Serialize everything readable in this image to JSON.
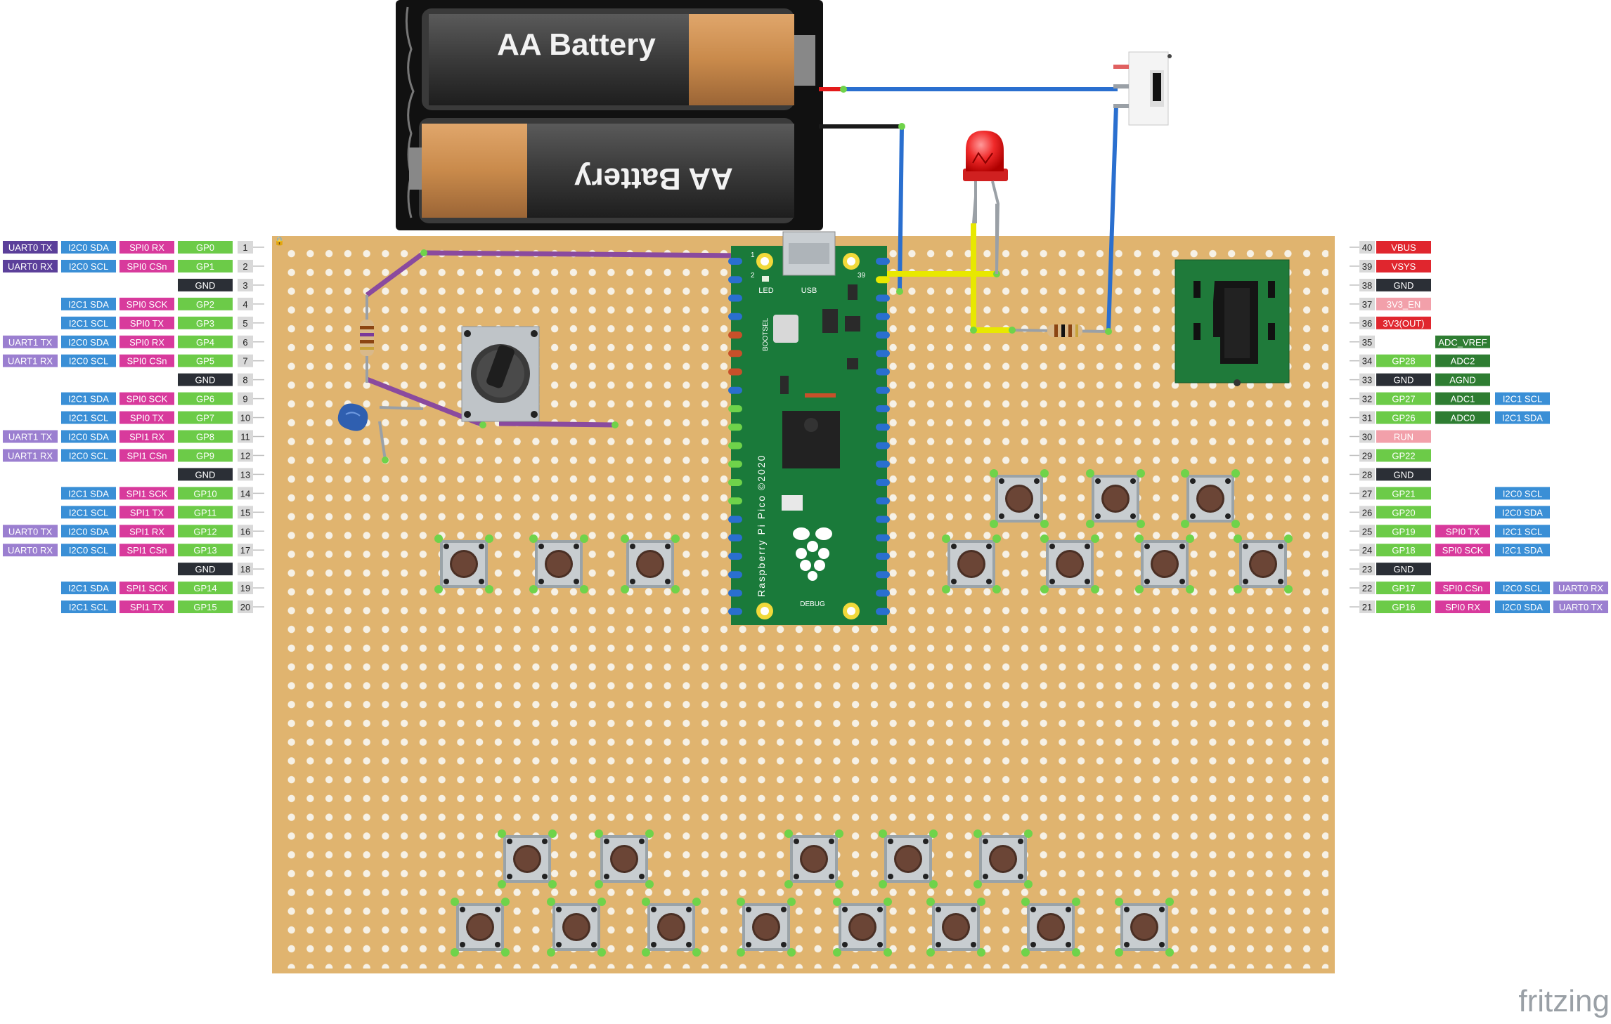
{
  "battery": {
    "label_top": "AA Battery",
    "label_bottom": "AA Battery"
  },
  "pico": {
    "name": "Raspberry Pi Pico ©2020",
    "usb_label": "USB",
    "led_label": "LED",
    "bootsel_label": "BOOTSEL",
    "debug_label": "DEBUG",
    "pin1_label": "1",
    "pin2_label": "2",
    "pin39_label": "39"
  },
  "branding": {
    "logo": "fritzing"
  },
  "colors": {
    "board": "#e0b46f",
    "hole": "#f6f1e6",
    "pico_green": "#1a7a3a",
    "wire_blue": "#2a6fcf",
    "wire_purple": "#8a4a9e",
    "wire_yellow": "#e8e800",
    "wire_red": "#e31a1a",
    "wire_black": "#1a1a1a"
  },
  "left_pins": [
    {
      "num": "1",
      "labels": [
        [
          "UART0 TX",
          "#5b3f9a"
        ],
        [
          "I2C0 SDA",
          "#3a8fd6"
        ],
        [
          "SPI0 RX",
          "#d83a9c"
        ],
        [
          "GP0",
          "#6ccb48"
        ]
      ]
    },
    {
      "num": "2",
      "labels": [
        [
          "UART0 RX",
          "#5b3f9a"
        ],
        [
          "I2C0 SCL",
          "#3a8fd6"
        ],
        [
          "SPI0 CSn",
          "#d83a9c"
        ],
        [
          "GP1",
          "#6ccb48"
        ]
      ]
    },
    {
      "num": "3",
      "labels": [
        [
          "GND",
          "#2b2f36"
        ]
      ]
    },
    {
      "num": "4",
      "labels": [
        [
          "I2C1 SDA",
          "#3a8fd6"
        ],
        [
          "SPI0 SCK",
          "#d83a9c"
        ],
        [
          "GP2",
          "#6ccb48"
        ]
      ]
    },
    {
      "num": "5",
      "labels": [
        [
          "I2C1 SCL",
          "#3a8fd6"
        ],
        [
          "SPI0 TX",
          "#d83a9c"
        ],
        [
          "GP3",
          "#6ccb48"
        ]
      ]
    },
    {
      "num": "6",
      "labels": [
        [
          "UART1 TX",
          "#9b7fd0"
        ],
        [
          "I2C0 SDA",
          "#3a8fd6"
        ],
        [
          "SPI0 RX",
          "#d83a9c"
        ],
        [
          "GP4",
          "#6ccb48"
        ]
      ]
    },
    {
      "num": "7",
      "labels": [
        [
          "UART1 RX",
          "#9b7fd0"
        ],
        [
          "I2C0 SCL",
          "#3a8fd6"
        ],
        [
          "SPI0 CSn",
          "#d83a9c"
        ],
        [
          "GP5",
          "#6ccb48"
        ]
      ]
    },
    {
      "num": "8",
      "labels": [
        [
          "GND",
          "#2b2f36"
        ]
      ]
    },
    {
      "num": "9",
      "labels": [
        [
          "I2C1 SDA",
          "#3a8fd6"
        ],
        [
          "SPI0 SCK",
          "#d83a9c"
        ],
        [
          "GP6",
          "#6ccb48"
        ]
      ]
    },
    {
      "num": "10",
      "labels": [
        [
          "I2C1 SCL",
          "#3a8fd6"
        ],
        [
          "SPI0 TX",
          "#d83a9c"
        ],
        [
          "GP7",
          "#6ccb48"
        ]
      ]
    },
    {
      "num": "11",
      "labels": [
        [
          "UART1 TX",
          "#9b7fd0"
        ],
        [
          "I2C0 SDA",
          "#3a8fd6"
        ],
        [
          "SPI1 RX",
          "#d83a9c"
        ],
        [
          "GP8",
          "#6ccb48"
        ]
      ]
    },
    {
      "num": "12",
      "labels": [
        [
          "UART1 RX",
          "#9b7fd0"
        ],
        [
          "I2C0 SCL",
          "#3a8fd6"
        ],
        [
          "SPI1 CSn",
          "#d83a9c"
        ],
        [
          "GP9",
          "#6ccb48"
        ]
      ]
    },
    {
      "num": "13",
      "labels": [
        [
          "GND",
          "#2b2f36"
        ]
      ]
    },
    {
      "num": "14",
      "labels": [
        [
          "I2C1 SDA",
          "#3a8fd6"
        ],
        [
          "SPI1 SCK",
          "#d83a9c"
        ],
        [
          "GP10",
          "#6ccb48"
        ]
      ]
    },
    {
      "num": "15",
      "labels": [
        [
          "I2C1 SCL",
          "#3a8fd6"
        ],
        [
          "SPI1 TX",
          "#d83a9c"
        ],
        [
          "GP11",
          "#6ccb48"
        ]
      ]
    },
    {
      "num": "16",
      "labels": [
        [
          "UART0 TX",
          "#9b7fd0"
        ],
        [
          "I2C0 SDA",
          "#3a8fd6"
        ],
        [
          "SPI1 RX",
          "#d83a9c"
        ],
        [
          "GP12",
          "#6ccb48"
        ]
      ]
    },
    {
      "num": "17",
      "labels": [
        [
          "UART0 RX",
          "#9b7fd0"
        ],
        [
          "I2C0 SCL",
          "#3a8fd6"
        ],
        [
          "SPI1 CSn",
          "#d83a9c"
        ],
        [
          "GP13",
          "#6ccb48"
        ]
      ]
    },
    {
      "num": "18",
      "labels": [
        [
          "GND",
          "#2b2f36"
        ]
      ]
    },
    {
      "num": "19",
      "labels": [
        [
          "I2C1 SDA",
          "#3a8fd6"
        ],
        [
          "SPI1 SCK",
          "#d83a9c"
        ],
        [
          "GP14",
          "#6ccb48"
        ]
      ]
    },
    {
      "num": "20",
      "labels": [
        [
          "I2C1 SCL",
          "#3a8fd6"
        ],
        [
          "SPI1 TX",
          "#d83a9c"
        ],
        [
          "GP15",
          "#6ccb48"
        ]
      ]
    }
  ],
  "right_pins": [
    {
      "num": "40",
      "labels": [
        [
          "VBUS",
          "#e0262e"
        ]
      ]
    },
    {
      "num": "39",
      "labels": [
        [
          "VSYS",
          "#e0262e"
        ]
      ]
    },
    {
      "num": "38",
      "labels": [
        [
          "GND",
          "#2b2f36"
        ]
      ]
    },
    {
      "num": "37",
      "labels": [
        [
          "3V3_EN",
          "#f2a0aa"
        ]
      ]
    },
    {
      "num": "36",
      "labels": [
        [
          "3V3(OUT)",
          "#e0262e"
        ]
      ]
    },
    {
      "num": "35",
      "labels": [
        [
          "",
          "none"
        ],
        [
          "ADC_VREF",
          "#2e7d32"
        ]
      ]
    },
    {
      "num": "34",
      "labels": [
        [
          "GP28",
          "#6ccb48"
        ],
        [
          "ADC2",
          "#2e7d32"
        ]
      ]
    },
    {
      "num": "33",
      "labels": [
        [
          "GND",
          "#2b2f36"
        ],
        [
          "AGND",
          "#2e7d32"
        ]
      ]
    },
    {
      "num": "32",
      "labels": [
        [
          "GP27",
          "#6ccb48"
        ],
        [
          "ADC1",
          "#2e7d32"
        ],
        [
          "I2C1 SCL",
          "#3a8fd6"
        ]
      ]
    },
    {
      "num": "31",
      "labels": [
        [
          "GP26",
          "#6ccb48"
        ],
        [
          "ADC0",
          "#2e7d32"
        ],
        [
          "I2C1 SDA",
          "#3a8fd6"
        ]
      ]
    },
    {
      "num": "30",
      "labels": [
        [
          "RUN",
          "#f2a0aa"
        ]
      ]
    },
    {
      "num": "29",
      "labels": [
        [
          "GP22",
          "#6ccb48"
        ]
      ]
    },
    {
      "num": "28",
      "labels": [
        [
          "GND",
          "#2b2f36"
        ]
      ]
    },
    {
      "num": "27",
      "labels": [
        [
          "GP21",
          "#6ccb48"
        ],
        [
          "",
          "none"
        ],
        [
          "I2C0 SCL",
          "#3a8fd6"
        ]
      ]
    },
    {
      "num": "26",
      "labels": [
        [
          "GP20",
          "#6ccb48"
        ],
        [
          "",
          "none"
        ],
        [
          "I2C0 SDA",
          "#3a8fd6"
        ]
      ]
    },
    {
      "num": "25",
      "labels": [
        [
          "GP19",
          "#6ccb48"
        ],
        [
          "SPI0 TX",
          "#d83a9c"
        ],
        [
          "I2C1 SCL",
          "#3a8fd6"
        ]
      ]
    },
    {
      "num": "24",
      "labels": [
        [
          "GP18",
          "#6ccb48"
        ],
        [
          "SPI0 SCK",
          "#d83a9c"
        ],
        [
          "I2C1 SDA",
          "#3a8fd6"
        ]
      ]
    },
    {
      "num": "23",
      "labels": [
        [
          "GND",
          "#2b2f36"
        ]
      ]
    },
    {
      "num": "22",
      "labels": [
        [
          "GP17",
          "#6ccb48"
        ],
        [
          "SPI0 CSn",
          "#d83a9c"
        ],
        [
          "I2C0 SCL",
          "#3a8fd6"
        ],
        [
          "UART0 RX",
          "#9b7fd0"
        ]
      ]
    },
    {
      "num": "21",
      "labels": [
        [
          "GP16",
          "#6ccb48"
        ],
        [
          "SPI0 RX",
          "#d83a9c"
        ],
        [
          "I2C0 SDA",
          "#3a8fd6"
        ],
        [
          "UART0 TX",
          "#9b7fd0"
        ]
      ]
    }
  ]
}
